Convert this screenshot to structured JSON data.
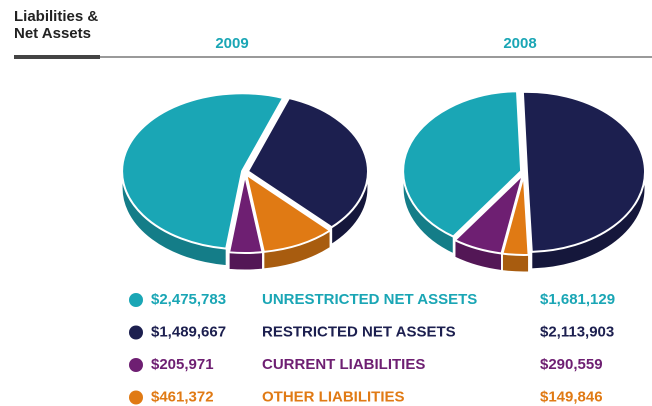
{
  "chart_data": {
    "type": "pie",
    "title": "Liabilities & Net Assets",
    "categories": [
      "UNRESTRICTED NET ASSETS",
      "RESTRICTED NET ASSETS",
      "CURRENT LIABILITIES",
      "OTHER LIABILITIES"
    ],
    "colors": [
      "#1aa6b5",
      "#1c1f4f",
      "#6e1f72",
      "#e07a14"
    ],
    "series": [
      {
        "name": "2009",
        "values": [
          2475783,
          1489667,
          205971,
          461372
        ],
        "value_labels": [
          "$2,475,783",
          "$1,489,667",
          "$205,971",
          "$461,372"
        ]
      },
      {
        "name": "2008",
        "values": [
          1681129,
          2113903,
          290559,
          149846
        ],
        "value_labels": [
          "$1,681,129",
          "$2,113,903",
          "$290,559",
          "$149,846"
        ]
      }
    ]
  }
}
